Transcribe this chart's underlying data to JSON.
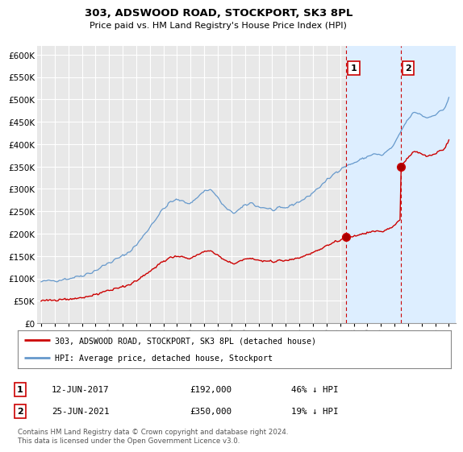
{
  "title": "303, ADSWOOD ROAD, STOCKPORT, SK3 8PL",
  "subtitle": "Price paid vs. HM Land Registry's House Price Index (HPI)",
  "ylim": [
    0,
    620000
  ],
  "yticks": [
    0,
    50000,
    100000,
    150000,
    200000,
    250000,
    300000,
    350000,
    400000,
    450000,
    500000,
    550000,
    600000
  ],
  "xlim_start": 1994.7,
  "xlim_end": 2025.5,
  "background_color": "#ffffff",
  "plot_bg_color": "#e8e8e8",
  "highlight_bg_color": "#ddeeff",
  "grid_color": "#ffffff",
  "hpi_color": "#6699cc",
  "price_color": "#cc0000",
  "dashed_color": "#cc0000",
  "transaction1": {
    "date": "12-JUN-2017",
    "price": 192000,
    "pct": "46% ↓ HPI",
    "label": "1"
  },
  "transaction2": {
    "date": "25-JUN-2021",
    "price": 350000,
    "pct": "19% ↓ HPI",
    "label": "2"
  },
  "legend_house_label": "303, ADSWOOD ROAD, STOCKPORT, SK3 8PL (detached house)",
  "legend_hpi_label": "HPI: Average price, detached house, Stockport",
  "footnote": "Contains HM Land Registry data © Crown copyright and database right 2024.\nThis data is licensed under the Open Government Licence v3.0.",
  "vline1_x": 2017.45,
  "vline2_x": 2021.45,
  "marker1_x": 2017.45,
  "marker1_y": 192000,
  "marker2_x": 2021.45,
  "marker2_y": 350000
}
